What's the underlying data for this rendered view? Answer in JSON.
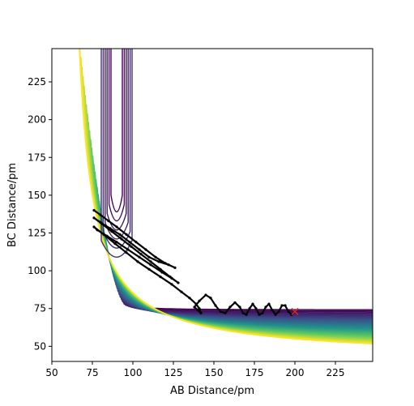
{
  "chart_data": {
    "type": "contour",
    "title": "",
    "xlabel": "AB Distance/pm",
    "ylabel": "BC Distance/pm",
    "xlim": [
      50,
      248
    ],
    "ylim": [
      40,
      247
    ],
    "xticks": [
      50,
      75,
      100,
      125,
      150,
      175,
      200,
      225
    ],
    "yticks": [
      50,
      75,
      100,
      125,
      150,
      175,
      200,
      225
    ],
    "grid": false,
    "legend": "none",
    "colormap": "viridis",
    "colormap_stops": [
      "#440154",
      "#3b528b",
      "#21918c",
      "#5ec962",
      "#fde725"
    ],
    "surface": {
      "description_values": {
        "valley_floor_bc": 74,
        "valley_floor_ab": 74,
        "wall_start_ab": 66,
        "wall_start_bc": 42
      }
    },
    "trajectory": {
      "color": "#000000",
      "points": [
        [
          76,
          140
        ],
        [
          80,
          137
        ],
        [
          85,
          133
        ],
        [
          90,
          129
        ],
        [
          96,
          124
        ],
        [
          102,
          119
        ],
        [
          108,
          114
        ],
        [
          114,
          109
        ],
        [
          120,
          105
        ],
        [
          126,
          102
        ],
        [
          122,
          104
        ],
        [
          116,
          106
        ],
        [
          110,
          109
        ],
        [
          104,
          114
        ],
        [
          98,
          119
        ],
        [
          92,
          124
        ],
        [
          86,
          128
        ],
        [
          80,
          132
        ],
        [
          76,
          135
        ],
        [
          81,
          131
        ],
        [
          87,
          126
        ],
        [
          93,
          121
        ],
        [
          99,
          116
        ],
        [
          105,
          111
        ],
        [
          111,
          106
        ],
        [
          117,
          101
        ],
        [
          123,
          96
        ],
        [
          128,
          92
        ],
        [
          124,
          95
        ],
        [
          118,
          99
        ],
        [
          111,
          104
        ],
        [
          104,
          109
        ],
        [
          97,
          114
        ],
        [
          90,
          119
        ],
        [
          84,
          123
        ],
        [
          78,
          127
        ],
        [
          76,
          129
        ],
        [
          82,
          124
        ],
        [
          89,
          118
        ],
        [
          96,
          112
        ],
        [
          103,
          106
        ],
        [
          110,
          101
        ],
        [
          117,
          96
        ],
        [
          124,
          91
        ],
        [
          130,
          86
        ],
        [
          135,
          82
        ],
        [
          139,
          78
        ],
        [
          141,
          75
        ],
        [
          142,
          72
        ],
        [
          140,
          74
        ],
        [
          138,
          76
        ],
        [
          141,
          80
        ],
        [
          145,
          84
        ],
        [
          148,
          82
        ],
        [
          151,
          77
        ],
        [
          154,
          73
        ],
        [
          157,
          72
        ],
        [
          160,
          76
        ],
        [
          163,
          79
        ],
        [
          166,
          76
        ],
        [
          168,
          72
        ],
        [
          170,
          71
        ],
        [
          172,
          75
        ],
        [
          174,
          78
        ],
        [
          176,
          75
        ],
        [
          178,
          71
        ],
        [
          180,
          72
        ],
        [
          182,
          76
        ],
        [
          184,
          78
        ],
        [
          186,
          74
        ],
        [
          188,
          71
        ],
        [
          190,
          73
        ],
        [
          192,
          77
        ],
        [
          194,
          77
        ],
        [
          196,
          73
        ],
        [
          198,
          71
        ],
        [
          200,
          73
        ]
      ]
    },
    "marker": {
      "x": 200,
      "y": 73,
      "symbol": "x",
      "color": "#d62728"
    }
  }
}
